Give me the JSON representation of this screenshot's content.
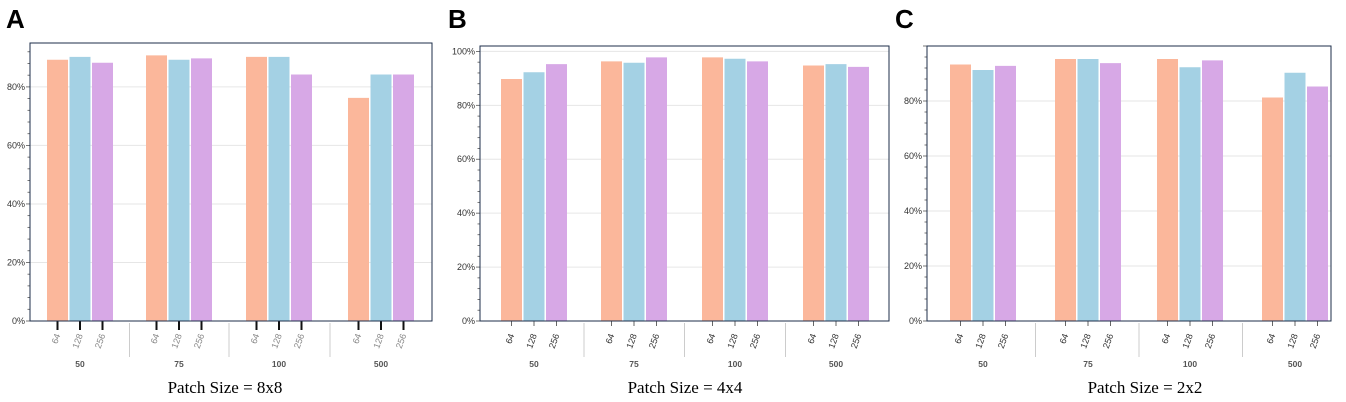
{
  "colors": {
    "64": "#fbb79b",
    "128": "#a4d1e4",
    "256": "#d7a8e6"
  },
  "chart_data": [
    {
      "type": "bar",
      "panel_label": "A",
      "caption": "Patch Size = 8x8",
      "groups": [
        "50",
        "75",
        "100",
        "500"
      ],
      "sub_categories": [
        "64",
        "128",
        "256"
      ],
      "series": [
        {
          "name": "64",
          "values": [
            89,
            90.5,
            90,
            76
          ]
        },
        {
          "name": "128",
          "values": [
            90,
            89,
            90,
            84
          ]
        },
        {
          "name": "256",
          "values": [
            88,
            89.5,
            84,
            84
          ]
        }
      ],
      "ylim": [
        0,
        95
      ],
      "yticks": [
        "0%",
        "20%",
        "40%",
        "60%",
        "80%"
      ],
      "ytick_values": [
        0,
        20,
        40,
        60,
        80
      ],
      "grid": true
    },
    {
      "type": "bar",
      "panel_label": "B",
      "caption": "Patch Size = 4x4",
      "groups": [
        "50",
        "75",
        "100",
        "500"
      ],
      "sub_categories": [
        "64",
        "128",
        "256"
      ],
      "series": [
        {
          "name": "64",
          "values": [
            89.5,
            96,
            97.5,
            94.5
          ]
        },
        {
          "name": "128",
          "values": [
            92,
            95.5,
            97,
            95
          ]
        },
        {
          "name": "256",
          "values": [
            95,
            97.5,
            96,
            94
          ]
        }
      ],
      "ylim": [
        0,
        102
      ],
      "yticks": [
        "0%",
        "20%",
        "40%",
        "60%",
        "80%",
        "100%"
      ],
      "ytick_values": [
        0,
        20,
        40,
        60,
        80,
        100
      ],
      "grid": true
    },
    {
      "type": "bar",
      "panel_label": "C",
      "caption": "Patch Size = 2x2",
      "groups": [
        "50",
        "75",
        "100",
        "500"
      ],
      "sub_categories": [
        "64",
        "128",
        "256"
      ],
      "series": [
        {
          "name": "64",
          "values": [
            93,
            95,
            95,
            81
          ]
        },
        {
          "name": "128",
          "values": [
            91,
            95,
            92,
            90
          ]
        },
        {
          "name": "256",
          "values": [
            92.5,
            93.5,
            94.5,
            85
          ]
        }
      ],
      "ylim": [
        0,
        100
      ],
      "yticks": [
        "0%",
        "20%",
        "40%",
        "60%",
        "80%"
      ],
      "ytick_values": [
        0,
        20,
        40,
        60,
        80
      ],
      "grid": true
    }
  ]
}
